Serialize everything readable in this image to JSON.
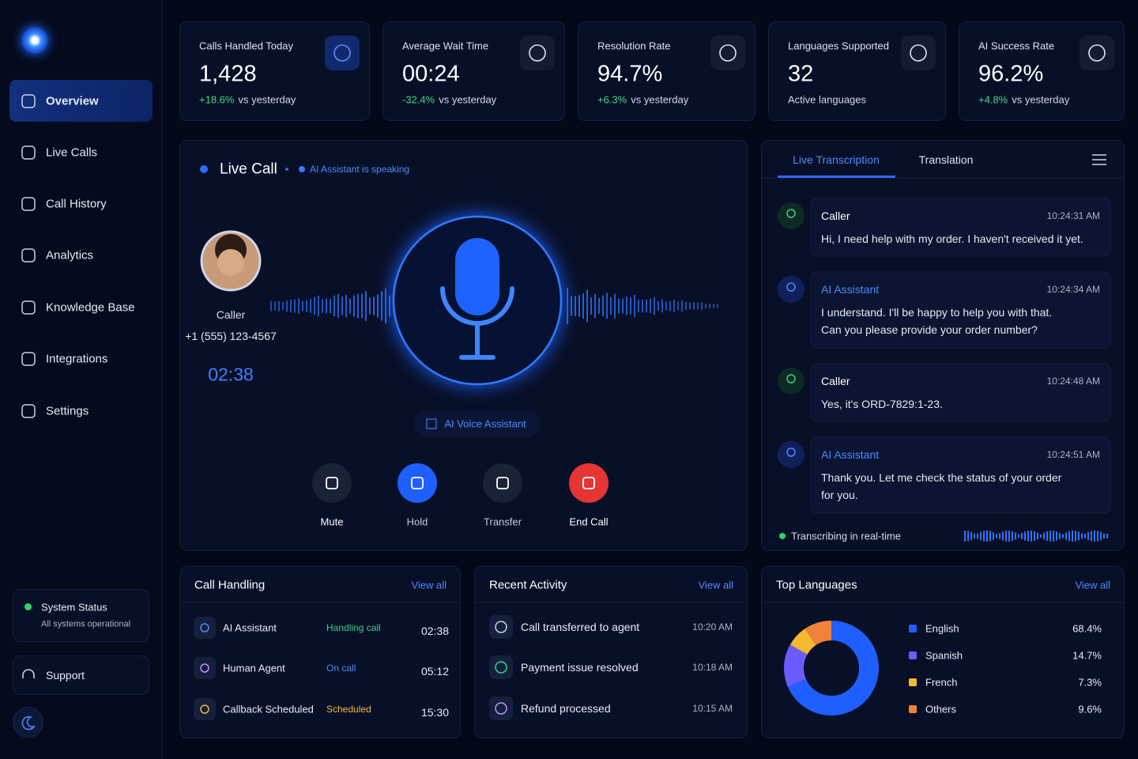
{
  "sidebar": {
    "nav": [
      "Overview",
      "Live Calls",
      "Call History",
      "Analytics",
      "Knowledge Base",
      "Integrations",
      "Settings"
    ],
    "status": {
      "title": "System Status",
      "text": "All systems operational"
    },
    "support": "Support"
  },
  "stats": [
    {
      "label": "Calls Handled Today",
      "value": "1,428",
      "change": "+18.6%",
      "note": "vs yesterday"
    },
    {
      "label": "Average Wait Time",
      "value": "00:24",
      "change": "-32.4%",
      "note": "vs yesterday"
    },
    {
      "label": "Resolution Rate",
      "value": "94.7%",
      "change": "+6.3%",
      "note": "vs yesterday"
    },
    {
      "label": "Languages Supported",
      "value": "32",
      "note": "Active languages"
    },
    {
      "label": "AI Success Rate",
      "value": "96.2%",
      "change": "+4.8%",
      "note": "vs yesterday"
    }
  ],
  "live_call": {
    "title": "Live Call",
    "status": "AI Assistant is speaking",
    "caller": {
      "label": "Caller",
      "phone": "+1 (555) 123-4567",
      "duration": "02:38"
    },
    "badge": "AI Voice Assistant",
    "controls": [
      "Mute",
      "Hold",
      "Transfer",
      "End Call"
    ]
  },
  "transcription": {
    "tabs": [
      "Live Transcription",
      "Translation"
    ],
    "messages": [
      {
        "speaker": "Caller",
        "time": "10:24:31 AM",
        "lines": [
          "Hi, I need help with my order. I haven't received it yet."
        ]
      },
      {
        "speaker": "AI Assistant",
        "time": "10:24:34 AM",
        "lines": [
          "I understand. I'll be happy to help you with that.",
          "Can you please provide your order number?"
        ]
      },
      {
        "speaker": "Caller",
        "time": "10:24:48 AM",
        "lines": [
          "Yes, it's ORD-7829:1-23."
        ]
      },
      {
        "speaker": "AI Assistant",
        "time": "10:24:51 AM",
        "lines": [
          "Thank you. Let me check the status of your order",
          "for you."
        ]
      }
    ],
    "footer": "Transcribing in real-time"
  },
  "call_handling": {
    "title": "Call Handling",
    "link": "View all",
    "rows": [
      {
        "name": "AI Assistant",
        "status": "Handling call",
        "time": "02:38"
      },
      {
        "name": "Human Agent",
        "status": "On call",
        "time": "05:12"
      },
      {
        "name": "Callback Scheduled",
        "status": "Scheduled",
        "time": "15:30"
      }
    ]
  },
  "recent_activity": {
    "title": "Recent Activity",
    "link": "View all",
    "rows": [
      {
        "text": "Call transferred to agent",
        "time": "10:20 AM"
      },
      {
        "text": "Payment issue resolved",
        "time": "10:18 AM"
      },
      {
        "text": "Refund processed",
        "time": "10:15 AM"
      }
    ]
  },
  "top_languages": {
    "title": "Top Languages",
    "link": "View all",
    "chart": {
      "type": "pie",
      "categories": [
        "English",
        "Spanish",
        "French",
        "Others"
      ],
      "values": [
        68.4,
        14.7,
        7.3,
        9.6
      ],
      "value_labels": [
        "68.4%",
        "14.7%",
        "7.3%",
        "9.6%"
      ],
      "colors": [
        "#1f5fff",
        "#6a5cff",
        "#f5b82e",
        "#f0823a"
      ]
    }
  }
}
